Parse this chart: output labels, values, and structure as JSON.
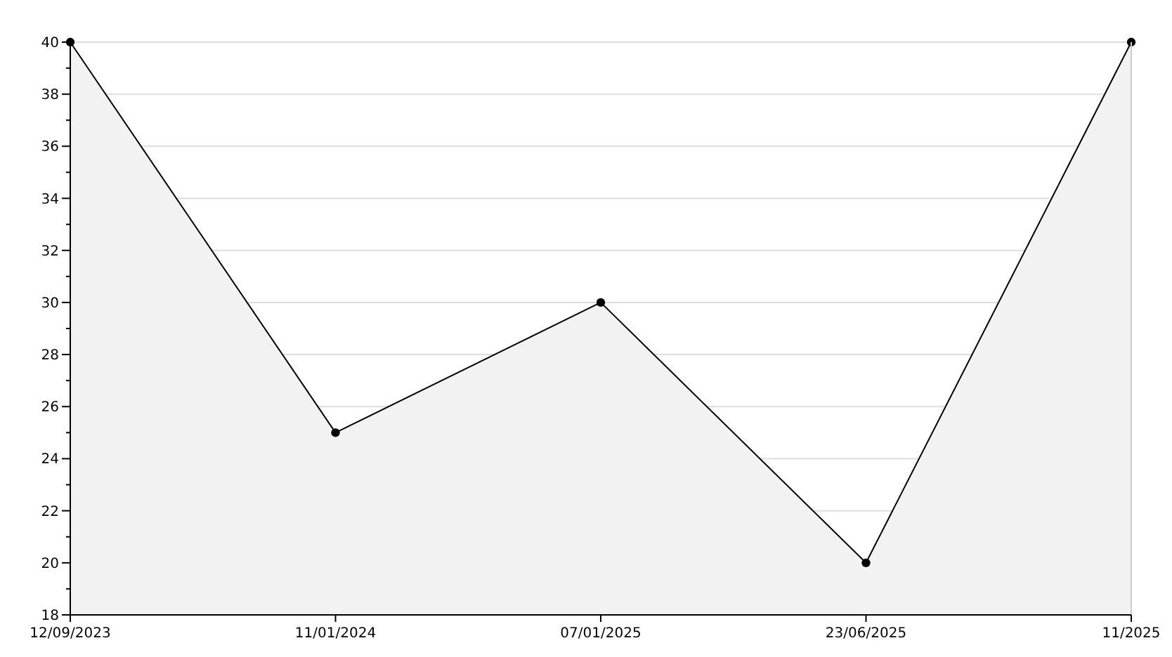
{
  "chart_data": {
    "type": "area",
    "categories": [
      "12/09/2023",
      "11/01/2024",
      "07/01/2025",
      "23/06/2025",
      "11/2025"
    ],
    "series": [
      {
        "color": "#000000",
        "values": [
          40,
          25,
          30,
          20,
          40
        ]
      }
    ],
    "ylim": [
      18,
      40
    ],
    "yticks": [
      18,
      {
        "value": 19,
        "label": null
      },
      20,
      {
        "value": 21,
        "label": null
      },
      22,
      {
        "value": 23,
        "label": null
      },
      24,
      {
        "value": 25,
        "label": null
      },
      26,
      {
        "value": 27,
        "label": null
      },
      28,
      {
        "value": 29,
        "label": null
      },
      30,
      {
        "value": 31,
        "label": null
      },
      32,
      {
        "value": 33,
        "label": null
      },
      34,
      {
        "value": 35,
        "label": null
      },
      36,
      {
        "value": 37,
        "label": null
      },
      38,
      {
        "value": 39,
        "label": null
      },
      40
    ],
    "grid": "y",
    "marker": "circle"
  }
}
